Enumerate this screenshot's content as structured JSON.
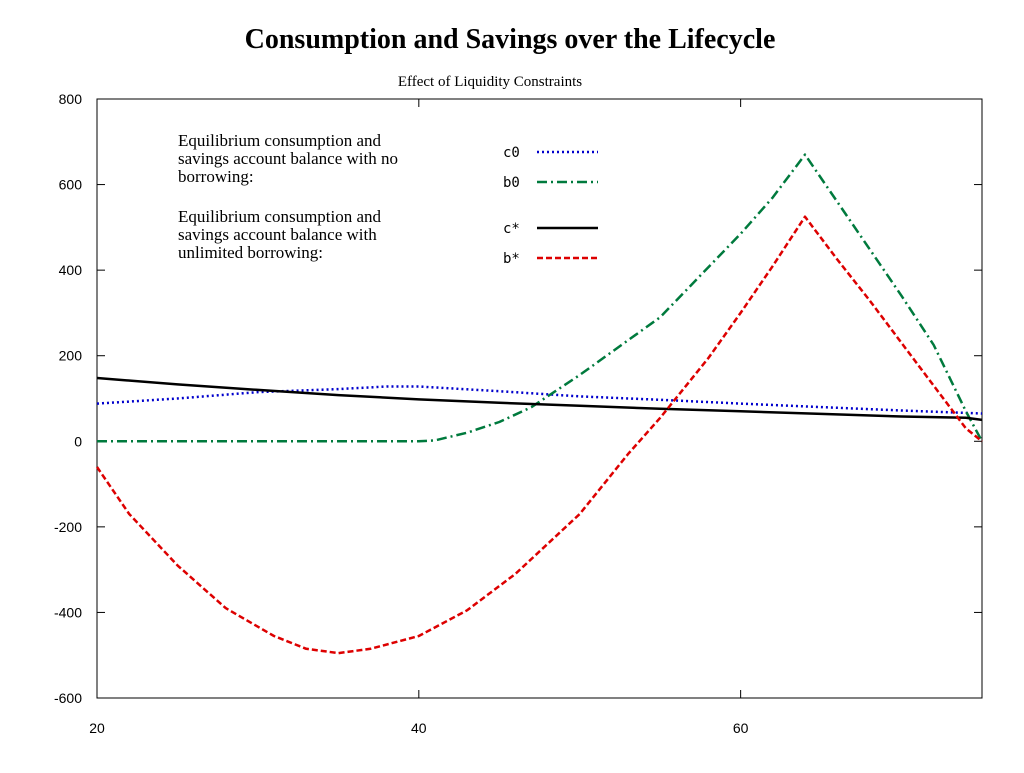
{
  "chart_data": {
    "type": "line",
    "title": "Consumption and Savings over the Lifecycle",
    "subtitle": "Effect of Liquidity Constraints",
    "xlabel": "",
    "ylabel": "",
    "xlim": [
      20,
      75
    ],
    "ylim": [
      -600,
      800
    ],
    "x_ticks": [
      20,
      40,
      60
    ],
    "y_ticks": [
      -600,
      -400,
      -200,
      0,
      200,
      400,
      600,
      800
    ],
    "grid": false,
    "annotations": [
      {
        "group": "no-borrowing",
        "lines": [
          "Equilibrium consumption and",
          "savings account balance with no",
          "borrowing:"
        ]
      },
      {
        "group": "unlimited-borrowing",
        "lines": [
          "Equilibrium consumption and",
          "savings account balance with",
          "unlimited borrowing:"
        ]
      }
    ],
    "series": [
      {
        "name": "c0",
        "color": "#0000cc",
        "style": "dotted",
        "points": [
          [
            20,
            88
          ],
          [
            25,
            100
          ],
          [
            30,
            115
          ],
          [
            35,
            122
          ],
          [
            38,
            128
          ],
          [
            40,
            128
          ],
          [
            45,
            117
          ],
          [
            50,
            105
          ],
          [
            55,
            97
          ],
          [
            60,
            88
          ],
          [
            65,
            80
          ],
          [
            70,
            72
          ],
          [
            75,
            65
          ]
        ]
      },
      {
        "name": "b0",
        "color": "#007a3d",
        "style": "dashdot",
        "points": [
          [
            20,
            0
          ],
          [
            25,
            0
          ],
          [
            30,
            0
          ],
          [
            35,
            0
          ],
          [
            40,
            0
          ],
          [
            41,
            2
          ],
          [
            43,
            20
          ],
          [
            45,
            45
          ],
          [
            47,
            80
          ],
          [
            50,
            155
          ],
          [
            55,
            290
          ],
          [
            60,
            485
          ],
          [
            62,
            570
          ],
          [
            64,
            670
          ],
          [
            66,
            560
          ],
          [
            68,
            450
          ],
          [
            70,
            340
          ],
          [
            72,
            225
          ],
          [
            74,
            70
          ],
          [
            75,
            0
          ]
        ]
      },
      {
        "name": "c*",
        "color": "#000000",
        "style": "solid",
        "points": [
          [
            20,
            148
          ],
          [
            25,
            133
          ],
          [
            30,
            120
          ],
          [
            35,
            108
          ],
          [
            40,
            98
          ],
          [
            45,
            90
          ],
          [
            50,
            83
          ],
          [
            55,
            76
          ],
          [
            60,
            70
          ],
          [
            65,
            64
          ],
          [
            70,
            58
          ],
          [
            74,
            55
          ],
          [
            75,
            50
          ]
        ]
      },
      {
        "name": "b*",
        "color": "#dd0000",
        "style": "dashed",
        "points": [
          [
            20,
            -60
          ],
          [
            22,
            -170
          ],
          [
            25,
            -290
          ],
          [
            28,
            -390
          ],
          [
            31,
            -455
          ],
          [
            33,
            -485
          ],
          [
            35,
            -495
          ],
          [
            37,
            -485
          ],
          [
            40,
            -455
          ],
          [
            43,
            -395
          ],
          [
            46,
            -310
          ],
          [
            50,
            -170
          ],
          [
            53,
            -30
          ],
          [
            55,
            55
          ],
          [
            58,
            195
          ],
          [
            60,
            300
          ],
          [
            62,
            410
          ],
          [
            64,
            525
          ],
          [
            66,
            425
          ],
          [
            68,
            330
          ],
          [
            70,
            230
          ],
          [
            72,
            130
          ],
          [
            74,
            30
          ],
          [
            75,
            0
          ]
        ]
      }
    ]
  }
}
